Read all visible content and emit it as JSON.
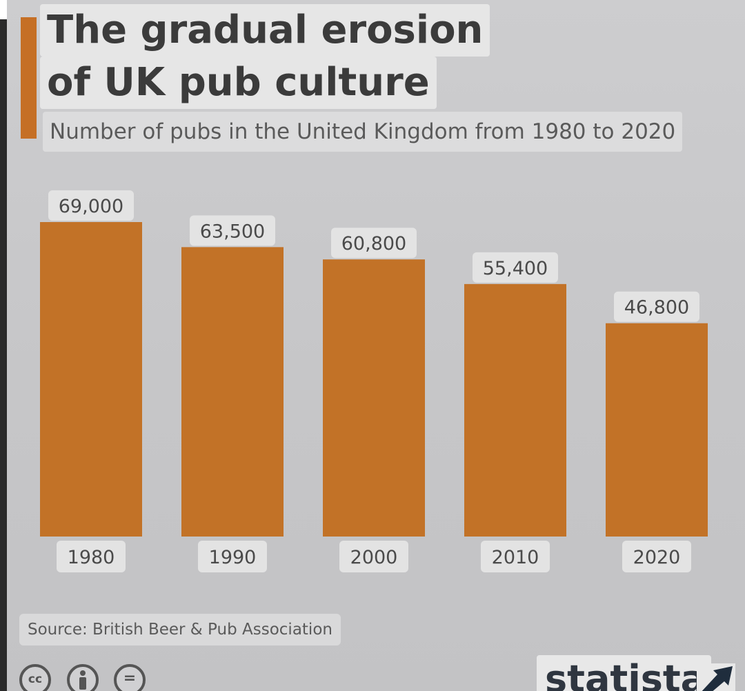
{
  "title": {
    "line1": "The gradual erosion",
    "line2": "of UK pub culture"
  },
  "subtitle": "Number of pubs in the United Kingdom from 1980 to 2020",
  "source": "Source: British Beer & Pub Association",
  "license_icons": [
    "cc-icon",
    "by-icon",
    "nd-icon"
  ],
  "license_icon_text": {
    "cc": "cc",
    "nd": "="
  },
  "logo": {
    "text": "statista"
  },
  "colors": {
    "bar": "#c27227",
    "accent": "#c56f25",
    "background": "#c8c8ca",
    "label_pill": "#e3e3e3"
  },
  "chart_data": {
    "type": "bar",
    "title": "The gradual erosion of UK pub culture",
    "subtitle": "Number of pubs in the United Kingdom from 1980 to 2020",
    "categories": [
      "1980",
      "1990",
      "2000",
      "2010",
      "2020"
    ],
    "values": [
      69000,
      63500,
      60800,
      55400,
      46800
    ],
    "value_labels": [
      "69,000",
      "63,500",
      "60,800",
      "55,400",
      "46,800"
    ],
    "xlabel": "",
    "ylabel": "",
    "ylim": [
      0,
      69000
    ],
    "grid": false,
    "legend": "none"
  }
}
